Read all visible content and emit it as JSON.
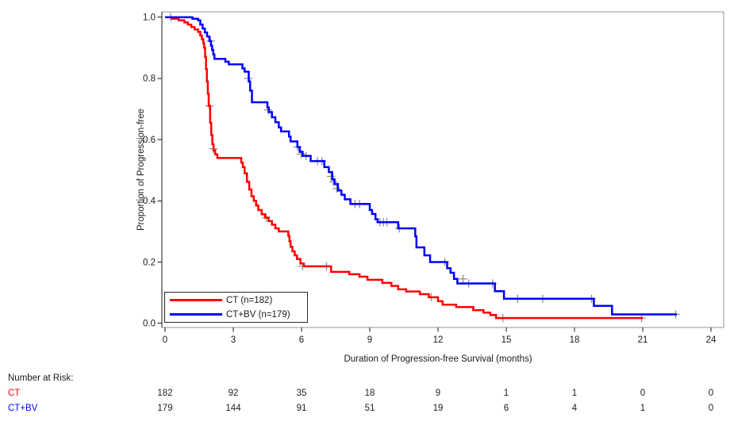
{
  "figure": {
    "background": "#ffffff",
    "text_color": "#1a1a1a",
    "frame_color": "#949494",
    "axis_color": "#1a1a1a",
    "censor_color": "#8f8f8f"
  },
  "risk_table": {
    "title": "Number at Risk:",
    "months": [
      0,
      3,
      6,
      9,
      12,
      15,
      18,
      21,
      24
    ],
    "rows": [
      {
        "label": "CT",
        "color": "#ff0000",
        "values": [
          "182",
          "92",
          "35",
          "18",
          "9",
          "1",
          "1",
          "0",
          "0"
        ]
      },
      {
        "label": "CT+BV",
        "color": "#0000ff",
        "values": [
          "179",
          "144",
          "91",
          "51",
          "19",
          "6",
          "4",
          "1",
          "0"
        ]
      }
    ]
  },
  "chart_data": {
    "type": "line",
    "subtype": "kaplan_meier_step",
    "title": "",
    "xlabel": "Duration of Progression-free Survival (months)",
    "ylabel": "Proportion of Progression-free",
    "xlim": [
      0,
      24
    ],
    "ylim": [
      0.0,
      1.0
    ],
    "xticks": [
      0,
      3,
      6,
      9,
      12,
      15,
      18,
      21,
      24
    ],
    "xtick_labels": [
      "0",
      "3",
      "6",
      "9",
      "12",
      "15",
      "18",
      "21",
      "24"
    ],
    "yticks": [
      0.0,
      0.2,
      0.4,
      0.6,
      0.8,
      1.0
    ],
    "ytick_labels": [
      "0.0",
      "0.2",
      "0.4",
      "0.6",
      "0.8",
      "1.0"
    ],
    "grid": false,
    "legend_position": "inside-lower-left",
    "series": [
      {
        "name": "CT (n=182)",
        "color": "#ff0000",
        "points": [
          [
            0,
            1.0
          ],
          [
            0.3,
            0.995
          ],
          [
            0.6,
            0.99
          ],
          [
            0.85,
            0.983
          ],
          [
            1.0,
            0.976
          ],
          [
            1.15,
            0.968
          ],
          [
            1.3,
            0.96
          ],
          [
            1.45,
            0.952
          ],
          [
            1.55,
            0.94
          ],
          [
            1.62,
            0.928
          ],
          [
            1.68,
            0.915
          ],
          [
            1.72,
            0.9
          ],
          [
            1.76,
            0.87
          ],
          [
            1.8,
            0.83
          ],
          [
            1.84,
            0.79
          ],
          [
            1.88,
            0.75
          ],
          [
            1.92,
            0.71
          ],
          [
            1.98,
            0.655
          ],
          [
            2.03,
            0.615
          ],
          [
            2.08,
            0.585
          ],
          [
            2.13,
            0.565
          ],
          [
            2.2,
            0.552
          ],
          [
            2.3,
            0.54
          ],
          [
            3.35,
            0.525
          ],
          [
            3.42,
            0.51
          ],
          [
            3.5,
            0.49
          ],
          [
            3.6,
            0.462
          ],
          [
            3.7,
            0.437
          ],
          [
            3.8,
            0.415
          ],
          [
            3.9,
            0.4
          ],
          [
            4.0,
            0.385
          ],
          [
            4.1,
            0.37
          ],
          [
            4.25,
            0.356
          ],
          [
            4.4,
            0.345
          ],
          [
            4.55,
            0.334
          ],
          [
            4.7,
            0.322
          ],
          [
            4.85,
            0.31
          ],
          [
            5.0,
            0.3
          ],
          [
            5.42,
            0.285
          ],
          [
            5.47,
            0.268
          ],
          [
            5.52,
            0.25
          ],
          [
            5.6,
            0.235
          ],
          [
            5.7,
            0.222
          ],
          [
            5.8,
            0.21
          ],
          [
            5.95,
            0.195
          ],
          [
            6.1,
            0.186
          ],
          [
            7.3,
            0.168
          ],
          [
            8.1,
            0.16
          ],
          [
            8.55,
            0.152
          ],
          [
            8.9,
            0.142
          ],
          [
            9.55,
            0.132
          ],
          [
            9.95,
            0.122
          ],
          [
            10.25,
            0.111
          ],
          [
            10.6,
            0.104
          ],
          [
            11.2,
            0.095
          ],
          [
            11.6,
            0.085
          ],
          [
            12.0,
            0.072
          ],
          [
            12.2,
            0.061
          ],
          [
            12.8,
            0.053
          ],
          [
            13.55,
            0.043
          ],
          [
            14.0,
            0.035
          ],
          [
            14.3,
            0.027
          ],
          [
            14.55,
            0.017
          ],
          [
            21.0,
            0.017
          ]
        ],
        "censor_marks": [
          [
            0.25,
            1.0
          ],
          [
            1.95,
            0.71
          ],
          [
            2.12,
            0.57
          ],
          [
            4.45,
            0.345
          ],
          [
            6.05,
            0.186
          ],
          [
            7.1,
            0.186
          ],
          [
            11.7,
            0.085
          ],
          [
            14.85,
            0.017
          ],
          [
            20.95,
            0.017
          ]
        ]
      },
      {
        "name": "CT+BV (n=179)",
        "color": "#0000ff",
        "points": [
          [
            0,
            1.0
          ],
          [
            1.2,
            0.995
          ],
          [
            1.45,
            0.99
          ],
          [
            1.55,
            0.976
          ],
          [
            1.65,
            0.963
          ],
          [
            1.75,
            0.95
          ],
          [
            1.85,
            0.937
          ],
          [
            1.95,
            0.922
          ],
          [
            2.02,
            0.907
          ],
          [
            2.07,
            0.893
          ],
          [
            2.12,
            0.878
          ],
          [
            2.17,
            0.864
          ],
          [
            2.65,
            0.855
          ],
          [
            2.8,
            0.846
          ],
          [
            3.4,
            0.833
          ],
          [
            3.5,
            0.822
          ],
          [
            3.68,
            0.79
          ],
          [
            3.74,
            0.76
          ],
          [
            3.82,
            0.722
          ],
          [
            4.5,
            0.705
          ],
          [
            4.56,
            0.69
          ],
          [
            4.7,
            0.673
          ],
          [
            4.85,
            0.657
          ],
          [
            5.0,
            0.64
          ],
          [
            5.1,
            0.627
          ],
          [
            5.45,
            0.61
          ],
          [
            5.52,
            0.594
          ],
          [
            5.82,
            0.576
          ],
          [
            5.92,
            0.56
          ],
          [
            6.05,
            0.547
          ],
          [
            6.4,
            0.53
          ],
          [
            7.0,
            0.51
          ],
          [
            7.2,
            0.494
          ],
          [
            7.35,
            0.47
          ],
          [
            7.45,
            0.455
          ],
          [
            7.6,
            0.434
          ],
          [
            7.75,
            0.42
          ],
          [
            7.9,
            0.405
          ],
          [
            8.15,
            0.39
          ],
          [
            9.0,
            0.37
          ],
          [
            9.1,
            0.357
          ],
          [
            9.25,
            0.34
          ],
          [
            9.35,
            0.33
          ],
          [
            10.25,
            0.31
          ],
          [
            11.0,
            0.284
          ],
          [
            11.05,
            0.248
          ],
          [
            11.4,
            0.222
          ],
          [
            11.65,
            0.2
          ],
          [
            12.4,
            0.18
          ],
          [
            12.55,
            0.165
          ],
          [
            12.7,
            0.145
          ],
          [
            12.85,
            0.13
          ],
          [
            14.5,
            0.105
          ],
          [
            14.9,
            0.08
          ],
          [
            18.85,
            0.057
          ],
          [
            19.65,
            0.029
          ],
          [
            22.5,
            0.029
          ]
        ],
        "censor_marks": [
          [
            2.0,
            0.922
          ],
          [
            3.66,
            0.8
          ],
          [
            4.53,
            0.697
          ],
          [
            5.83,
            0.576
          ],
          [
            5.98,
            0.553
          ],
          [
            6.2,
            0.547
          ],
          [
            6.7,
            0.53
          ],
          [
            6.9,
            0.53
          ],
          [
            7.3,
            0.48
          ],
          [
            7.4,
            0.462
          ],
          [
            7.55,
            0.44
          ],
          [
            8.35,
            0.39
          ],
          [
            8.55,
            0.39
          ],
          [
            9.45,
            0.33
          ],
          [
            9.6,
            0.33
          ],
          [
            9.75,
            0.33
          ],
          [
            10.3,
            0.31
          ],
          [
            12.3,
            0.2
          ],
          [
            13.1,
            0.145
          ],
          [
            13.35,
            0.13
          ],
          [
            14.4,
            0.13
          ],
          [
            15.5,
            0.08
          ],
          [
            16.6,
            0.08
          ],
          [
            18.75,
            0.08
          ],
          [
            22.45,
            0.029
          ]
        ]
      }
    ]
  }
}
